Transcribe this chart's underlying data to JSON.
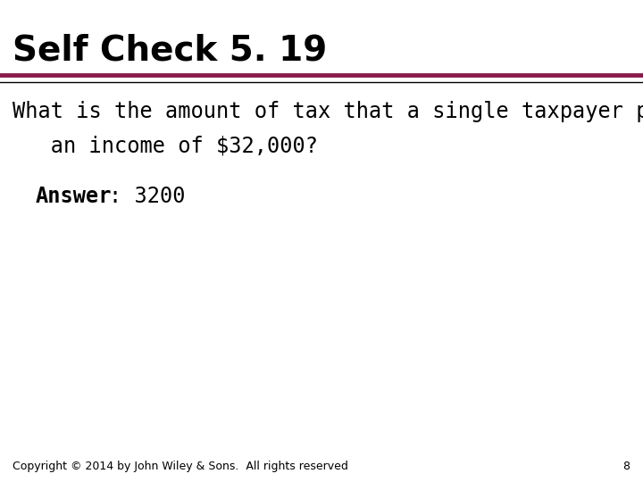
{
  "title": "Self Check 5. 19",
  "title_fontsize": 28,
  "title_fontweight": "bold",
  "title_color": "#000000",
  "separator_color_top": "#8B1A4A",
  "separator_color_bottom": "#000000",
  "body_line1": "What is the amount of tax that a single taxpayer pays on",
  "body_line2": "   an income of $32,000?",
  "body_fontsize": 17,
  "body_color": "#000000",
  "answer_label": "Answer",
  "answer_value": ": 3200",
  "answer_fontsize": 17,
  "footer_text": "Copyright © 2014 by John Wiley & Sons.  All rights reserved",
  "footer_page": "8",
  "footer_fontsize": 9,
  "background_color": "#ffffff"
}
